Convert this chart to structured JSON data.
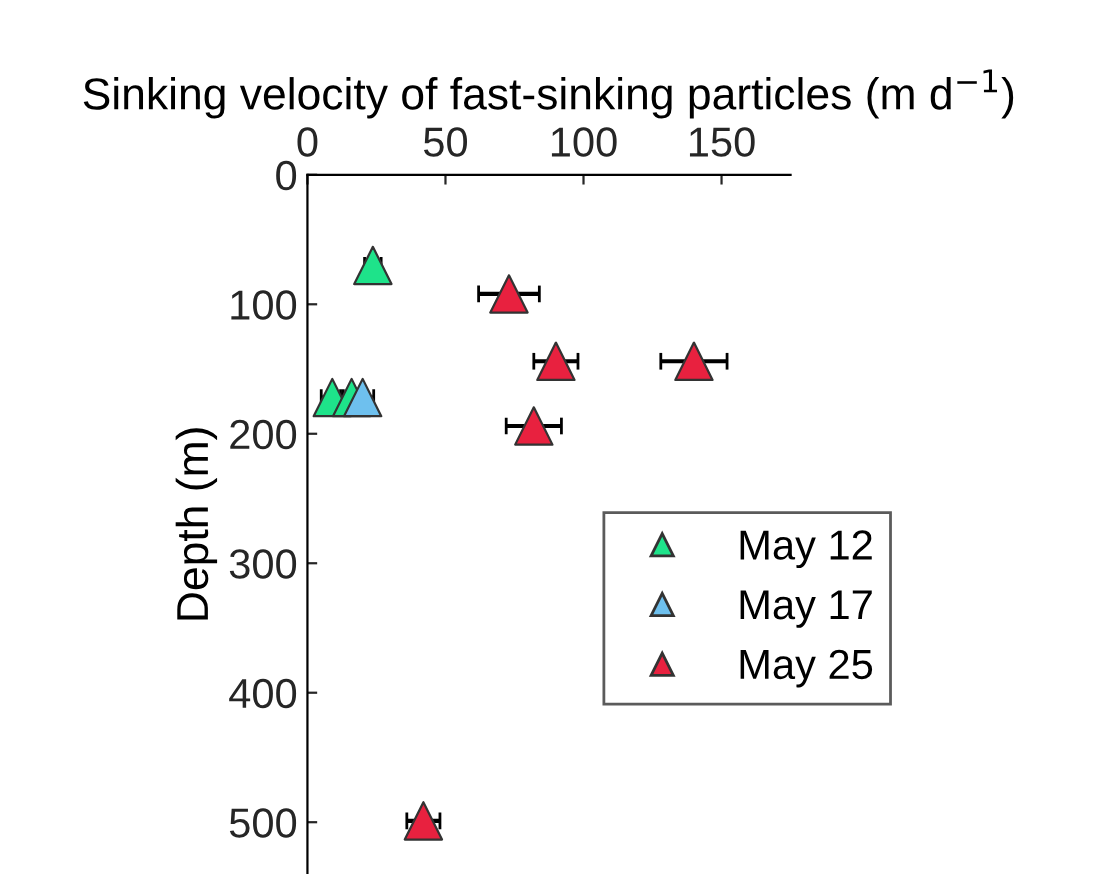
{
  "chart_data": {
    "type": "scatter",
    "xlabel": "Sinking velocity of fast-sinking particles (m d$^{−1}$)",
    "ylabel": "Depth (m)",
    "xlim": [
      0,
      175
    ],
    "xticks": [
      0,
      50,
      100,
      150
    ],
    "ylim": [
      540,
      0
    ],
    "yticks": [
      0,
      100,
      200,
      300,
      400,
      500
    ],
    "marker": "triangle",
    "grid": false,
    "legend": "right",
    "series": [
      {
        "name": "May 12",
        "color": "#1ee38a",
        "x": [
          23.7,
          9,
          16
        ],
        "values": [
          70,
          172,
          172
        ],
        "xerrors": [
          3,
          4,
          4
        ]
      },
      {
        "name": "May 17",
        "color": "#6ec0ee",
        "x": [
          20
        ],
        "values": [
          172
        ],
        "xerrors": [
          4
        ]
      },
      {
        "name": "May 25",
        "color": "#e8213f",
        "x": [
          73,
          90,
          140,
          82,
          42
        ],
        "values": [
          92,
          144,
          144,
          194,
          499
        ],
        "xerrors": [
          11,
          8,
          12,
          10,
          6
        ]
      }
    ]
  }
}
